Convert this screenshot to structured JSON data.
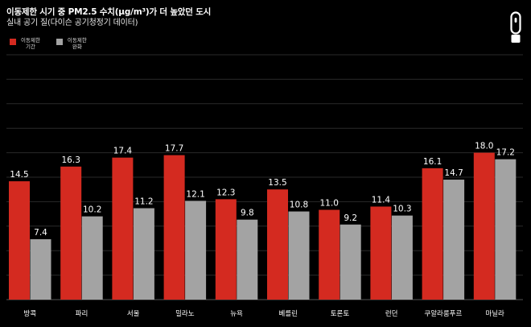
{
  "header": {
    "title": "이동제한 시기 중 PM2.5 수치(μg/m³)가 더 높았던 도시",
    "subtitle": "실내 공기 질(다이슨 공기청정기 데이터)"
  },
  "legend": [
    {
      "label": "이동제한\n기간",
      "color": "#d42a20"
    },
    {
      "label": "이동제한\n완화",
      "color": "#a3a3a3"
    }
  ],
  "logo": {
    "icon": "dyson-air-purifier-icon",
    "color": "#ffffff"
  },
  "colors": {
    "background": "#000000",
    "lockdown": "#d42a20",
    "eased": "#a3a3a3",
    "grid": "#2a2a2a",
    "text": "#ffffff"
  },
  "chart_data": {
    "type": "bar",
    "title": "이동제한 시기 중 PM2.5 수치(μg/m³)가 더 높았던 도시",
    "subtitle": "실내 공기 질(다이슨 공기청정기 데이터)",
    "categories": [
      "방콕",
      "파리",
      "서울",
      "밀라노",
      "뉴욕",
      "베를린",
      "토론토",
      "런던",
      "쿠알라룸푸르",
      "마닐라"
    ],
    "series": [
      {
        "name": "이동제한 기간",
        "color": "#d42a20",
        "values": [
          14.5,
          16.3,
          17.4,
          17.7,
          12.3,
          13.5,
          11.0,
          11.4,
          16.1,
          18.0
        ]
      },
      {
        "name": "이동제한 완화",
        "color": "#a3a3a3",
        "values": [
          7.4,
          10.2,
          11.2,
          12.1,
          9.8,
          10.8,
          9.2,
          10.3,
          14.7,
          17.2
        ]
      }
    ],
    "ylim": [
      0,
      30
    ],
    "grid": true,
    "legend_position": "top-left"
  }
}
